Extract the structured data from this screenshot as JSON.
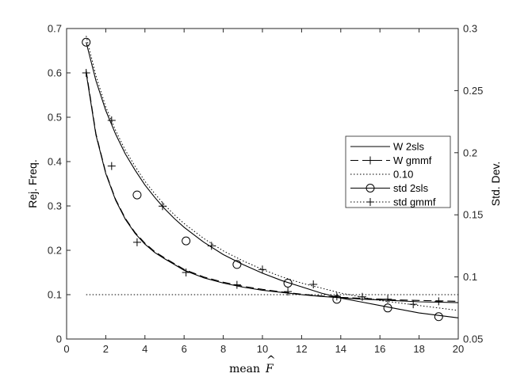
{
  "chart_data": {
    "type": "line",
    "xlabel": "mean",
    "xlabel_symbol": "F",
    "ylabel_left": "Rej. Freq.",
    "ylabel_right": "Std. Dev.",
    "xlim": [
      0,
      20
    ],
    "ylim_left": [
      0,
      0.7
    ],
    "ylim_right": [
      0.05,
      0.3
    ],
    "xticks": [
      0,
      2,
      4,
      6,
      8,
      10,
      12,
      14,
      16,
      18,
      20
    ],
    "yticks_left": [
      0,
      0.1,
      0.2,
      0.3,
      0.4,
      0.5,
      0.6,
      0.7
    ],
    "yticks_right": [
      0.05,
      0.1,
      0.15,
      0.2,
      0.25,
      0.3
    ],
    "xtick_labels": [
      "0",
      "2",
      "4",
      "6",
      "8",
      "10",
      "12",
      "14",
      "16",
      "18",
      "20"
    ],
    "ytick_labels_left": [
      "0",
      "0.1",
      "0.2",
      "0.3",
      "0.4",
      "0.5",
      "0.6",
      "0.7"
    ],
    "ytick_labels_right": [
      "0.05",
      "0.1",
      "0.15",
      "0.2",
      "0.25",
      "0.3"
    ],
    "legend_location": "right",
    "series": [
      {
        "name": "W 2sls",
        "axis": "left",
        "line": "solid",
        "marker": "none",
        "x": [
          1,
          1.5,
          2,
          2.5,
          3,
          3.5,
          4,
          4.5,
          5,
          5.5,
          6,
          7,
          8,
          9,
          10,
          11,
          12,
          13,
          14,
          15,
          16,
          17,
          18,
          19,
          20
        ],
        "values": [
          0.6,
          0.46,
          0.373,
          0.313,
          0.27,
          0.238,
          0.214,
          0.195,
          0.181,
          0.168,
          0.155,
          0.138,
          0.126,
          0.117,
          0.11,
          0.105,
          0.1,
          0.096,
          0.093,
          0.09,
          0.088,
          0.086,
          0.084,
          0.083,
          0.082
        ]
      },
      {
        "name": "W gmmf",
        "axis": "left",
        "line": "dashed",
        "marker": "plus",
        "x": [
          1,
          1.5,
          2,
          2.5,
          3,
          3.5,
          4,
          4.5,
          5,
          5.5,
          6,
          7,
          8,
          9,
          10,
          11,
          12,
          13,
          14,
          15,
          16,
          17,
          18,
          19,
          20
        ],
        "values": [
          0.605,
          0.463,
          0.375,
          0.315,
          0.272,
          0.24,
          0.216,
          0.197,
          0.183,
          0.17,
          0.157,
          0.14,
          0.128,
          0.119,
          0.112,
          0.106,
          0.101,
          0.097,
          0.094,
          0.092,
          0.09,
          0.088,
          0.087,
          0.086,
          0.085
        ],
        "marker_x": [
          1,
          2.3,
          3.6,
          6.1,
          8.7,
          11.3,
          13.8,
          16.4,
          19
        ],
        "marker_values": [
          0.6,
          0.39,
          0.218,
          0.15,
          0.122,
          0.107,
          0.096,
          0.09,
          0.085
        ]
      },
      {
        "name": "0.10",
        "axis": "left",
        "line": "dotted",
        "marker": "none",
        "x": [
          1,
          20
        ],
        "values": [
          0.1,
          0.1
        ]
      },
      {
        "name": "std 2sls",
        "axis": "right",
        "line": "solid",
        "marker": "circle",
        "x": [
          1,
          1.5,
          2,
          2.5,
          3,
          3.5,
          4,
          4.5,
          5,
          5.5,
          6,
          7,
          8,
          9,
          10,
          11,
          12,
          13,
          14,
          15,
          16,
          17,
          18,
          19,
          20
        ],
        "values": [
          0.289,
          0.258,
          0.234,
          0.215,
          0.199,
          0.186,
          0.174,
          0.164,
          0.155,
          0.147,
          0.14,
          0.128,
          0.118,
          0.11,
          0.103,
          0.097,
          0.092,
          0.087,
          0.083,
          0.08,
          0.077,
          0.074,
          0.071,
          0.069,
          0.067
        ],
        "marker_x": [
          1,
          3.6,
          6.1,
          8.7,
          11.3,
          13.8,
          16.4,
          19
        ],
        "marker_values": [
          0.289,
          0.166,
          0.129,
          0.11,
          0.095,
          0.082,
          0.075,
          0.068
        ]
      },
      {
        "name": "std gmmf",
        "axis": "right",
        "line": "dotted",
        "marker": "plus",
        "x": [
          1,
          1.5,
          2,
          2.5,
          3,
          3.5,
          4,
          4.5,
          5,
          5.5,
          6,
          7,
          8,
          9,
          10,
          11,
          12,
          13,
          14,
          15,
          16,
          17,
          18,
          19,
          20
        ],
        "values": [
          0.294,
          0.262,
          0.237,
          0.218,
          0.202,
          0.189,
          0.177,
          0.167,
          0.158,
          0.15,
          0.143,
          0.131,
          0.121,
          0.113,
          0.106,
          0.1,
          0.095,
          0.091,
          0.087,
          0.084,
          0.081,
          0.079,
          0.077,
          0.075,
          0.073
        ],
        "marker_x": [
          2.3,
          4.9,
          7.4,
          10,
          12.6,
          15.1,
          17.7
        ],
        "marker_values": [
          0.226,
          0.157,
          0.125,
          0.106,
          0.094,
          0.084,
          0.078
        ]
      }
    ]
  }
}
